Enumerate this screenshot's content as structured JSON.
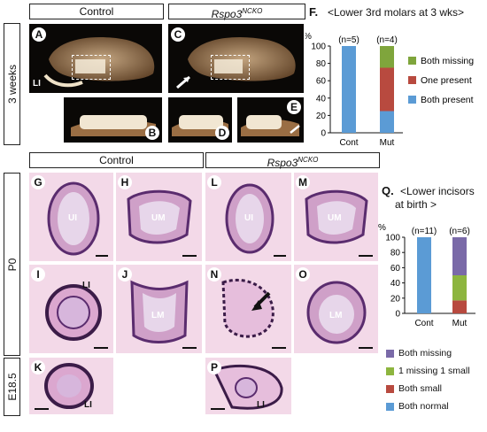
{
  "top": {
    "header_control": "Control",
    "header_mut": "Rspo3",
    "header_mut_sup": "NCKO",
    "side_label": "3 weeks",
    "panels": {
      "A": "A",
      "B": "B",
      "C": "C",
      "D": "D",
      "E": "E"
    },
    "label_LI": "LI"
  },
  "chartF": {
    "letter": "F.",
    "title": "<Lower 3rd molars at 3 wks>",
    "legend": [
      "Both missing",
      "One present",
      "Both present"
    ]
  },
  "bottom": {
    "header_control": "Control",
    "header_mut": "Rspo3",
    "header_mut_sup": "NCKO",
    "side_p0": "P0",
    "side_e185": "E18.5",
    "panels": {
      "G": "G",
      "H": "H",
      "I": "I",
      "J": "J",
      "K": "K",
      "L": "L",
      "M": "M",
      "N": "N",
      "O": "O",
      "P": "P"
    },
    "tissue": {
      "UI": "UI",
      "UM": "UM",
      "LI": "LI",
      "LM": "LM"
    }
  },
  "chartQ": {
    "letter": "Q.",
    "title_line1": "<Lower incisors",
    "title_line2": "at birth >",
    "legend": [
      "Both missing",
      "1 missing 1 small",
      "Both small",
      "Both normal"
    ]
  },
  "colors": {
    "both_missing_F": "#7fa53c",
    "one_present": "#b84a3f",
    "both_present": "#5b9bd5",
    "both_missing_Q": "#7a6aa8",
    "one_missing_one_small": "#8db53f",
    "both_small": "#b84a3f",
    "both_normal": "#5b9bd5"
  },
  "chart_data": [
    {
      "type": "bar",
      "stacked": true,
      "title": "<Lower 3rd molars at 3 wks>",
      "ylabel": "%",
      "categories": [
        "Cont",
        "Mut"
      ],
      "n_labels": [
        "(n=5)",
        "(n=4)"
      ],
      "ylim": [
        0,
        100
      ],
      "yticks": [
        0,
        20,
        40,
        60,
        80,
        100
      ],
      "series": [
        {
          "name": "Both present",
          "values": [
            100,
            25
          ]
        },
        {
          "name": "One present",
          "values": [
            0,
            50
          ]
        },
        {
          "name": "Both missing",
          "values": [
            0,
            25
          ]
        }
      ],
      "legend_position": "right"
    },
    {
      "type": "bar",
      "stacked": true,
      "title": "<Lower incisors at birth >",
      "ylabel": "%",
      "categories": [
        "Cont",
        "Mut"
      ],
      "n_labels": [
        "(n=11)",
        "(n=6)"
      ],
      "ylim": [
        0,
        100
      ],
      "yticks": [
        0,
        20,
        40,
        60,
        80,
        100
      ],
      "series": [
        {
          "name": "Both normal",
          "values": [
            100,
            0
          ]
        },
        {
          "name": "Both small",
          "values": [
            0,
            17
          ]
        },
        {
          "name": "1 missing 1 small",
          "values": [
            0,
            33
          ]
        },
        {
          "name": "Both missing",
          "values": [
            0,
            50
          ]
        }
      ],
      "legend_position": "bottom"
    }
  ]
}
